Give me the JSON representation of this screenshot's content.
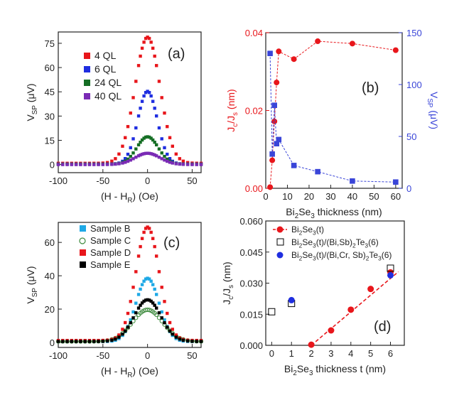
{
  "chart_data": [
    {
      "panel": "a",
      "type": "scatter",
      "panel_label": "(a)",
      "xlabel_main": "(H - H",
      "xlabel_sub": "R",
      "xlabel_end": ") (Oe)",
      "ylabel_main": "V",
      "ylabel_sub": "SP",
      "ylabel_end": " (μV)",
      "xlim": [
        -100,
        60
      ],
      "ylim": [
        -5,
        82
      ],
      "xticks": [
        -100,
        -50,
        0,
        50
      ],
      "yticks": [
        0,
        15,
        30,
        45,
        60,
        75
      ],
      "series": [
        {
          "name": "4 QL",
          "color": "#e8161b",
          "peak": 78,
          "width": 14,
          "offset": 0.8
        },
        {
          "name": "6 QL",
          "color": "#1f2ee0",
          "peak": 45,
          "width": 11,
          "offset": 0.3
        },
        {
          "name": "24 QL",
          "color": "#156e24",
          "peak": 17,
          "width": 12,
          "offset": 0.2
        },
        {
          "name": "40 QL",
          "color": "#7a2bb5",
          "peak": 7,
          "width": 14,
          "offset": 0.0
        }
      ],
      "x_samples": [
        -100,
        -95,
        -90,
        -85,
        -80,
        -75,
        -70,
        -65,
        -60,
        -55,
        -50,
        -45,
        -40,
        -36,
        -32,
        -28,
        -25,
        -22,
        -19,
        -16,
        -13,
        -10,
        -8,
        -6,
        -4,
        -2,
        0,
        2,
        4,
        6,
        8,
        10,
        13,
        16,
        19,
        22,
        25,
        28,
        32,
        36,
        40,
        45,
        50,
        55,
        60
      ]
    },
    {
      "panel": "b",
      "type": "line",
      "panel_label": "(b)",
      "xlabel_parts": [
        "Bi",
        "2",
        "Se",
        "3",
        " thickness (nm)"
      ],
      "ylabel_left_main": "J",
      "ylabel_left_sub1": "c",
      "ylabel_left_mid": "/J",
      "ylabel_left_sub2": "s",
      "ylabel_left_end": " (nm)",
      "ylabel_right_main": "V",
      "ylabel_right_sub": "SP",
      "ylabel_right_end": " (μV)",
      "xlim": [
        0,
        63
      ],
      "ylim_left": [
        0,
        0.04
      ],
      "ylim_right": [
        0,
        150
      ],
      "xticks": [
        0,
        10,
        20,
        30,
        40,
        50,
        60
      ],
      "yticks_left": [
        "0.00",
        "0.02",
        "0.04"
      ],
      "yticks_left_values": [
        0,
        0.02,
        0.04
      ],
      "yticks_right": [
        0,
        50,
        100,
        150
      ],
      "left_color": "#e8161b",
      "right_color": "#3a45d8",
      "series": [
        {
          "name": "Jc/Js",
          "axis": "left",
          "color": "#e8161b",
          "x": [
            2,
            3,
            4,
            5,
            6,
            13,
            24,
            40,
            60
          ],
          "y": [
            0.0003,
            0.0072,
            0.0172,
            0.0272,
            0.0352,
            0.0332,
            0.0378,
            0.0372,
            0.0355
          ]
        },
        {
          "name": "VSP",
          "axis": "right",
          "color": "#3a45d8",
          "x": [
            2,
            3,
            4,
            5,
            6,
            13,
            24,
            40,
            60
          ],
          "y": [
            130,
            33,
            80,
            43,
            47,
            22,
            16,
            7,
            6
          ]
        }
      ]
    },
    {
      "panel": "c",
      "type": "scatter",
      "panel_label": "(c)",
      "xlabel_main": "(H - H",
      "xlabel_sub": "R",
      "xlabel_end": ") (Oe)",
      "ylabel_main": "V",
      "ylabel_sub": "SP",
      "ylabel_end": " (μV)",
      "xlim": [
        -100,
        60
      ],
      "ylim": [
        -3,
        72
      ],
      "xticks": [
        -100,
        -50,
        0,
        50
      ],
      "yticks": [
        0,
        20,
        40,
        60
      ],
      "series": [
        {
          "name": "Sample B",
          "color": "#1fa9e6",
          "marker": "square",
          "peak": 38,
          "width": 13,
          "offset": 0.5
        },
        {
          "name": "Sample C",
          "color": "#3c8a3c",
          "marker": "open-circle",
          "peak": 19,
          "width": 17,
          "offset": 0.6
        },
        {
          "name": "Sample D",
          "color": "#e8161b",
          "marker": "square",
          "peak": 68,
          "width": 13,
          "offset": 1.2
        },
        {
          "name": "Sample E",
          "color": "#000000",
          "marker": "square",
          "peak": 25,
          "width": 15,
          "offset": 0.6
        }
      ],
      "x_samples": [
        -100,
        -95,
        -90,
        -85,
        -80,
        -75,
        -70,
        -65,
        -60,
        -55,
        -50,
        -45,
        -40,
        -36,
        -32,
        -28,
        -25,
        -22,
        -19,
        -16,
        -13,
        -10,
        -8,
        -6,
        -4,
        -2,
        0,
        2,
        4,
        6,
        8,
        10,
        13,
        16,
        19,
        22,
        25,
        28,
        32,
        36,
        40,
        45,
        50,
        55,
        60
      ]
    },
    {
      "panel": "d",
      "type": "scatter",
      "panel_label": "(d)",
      "xlabel_parts": [
        "Bi",
        "2",
        "Se",
        "3",
        " thickness t (nm)"
      ],
      "ylabel_main": "J",
      "ylabel_sub1": "c",
      "ylabel_mid": "/J",
      "ylabel_sub2": "s",
      "ylabel_end": " (nm)",
      "xlim": [
        -0.3,
        6.7
      ],
      "ylim": [
        0,
        0.06
      ],
      "xticks": [
        0,
        1,
        2,
        3,
        4,
        5,
        6
      ],
      "yticks": [
        "0.000",
        "0.015",
        "0.030",
        "0.045",
        "0.060"
      ],
      "yticks_values": [
        0,
        0.015,
        0.03,
        0.045,
        0.06
      ],
      "series": [
        {
          "name_parts": [
            "Bi",
            "2",
            "Se",
            "3",
            "(t)"
          ],
          "color": "#e8161b",
          "marker": "filled-circle-dashed-line",
          "x": [
            2,
            3,
            4,
            5,
            6
          ],
          "y": [
            0.0003,
            0.0072,
            0.0172,
            0.0272,
            0.0352
          ],
          "fit_x": [
            2,
            6.4
          ],
          "fit_y": [
            0.0,
            0.0355
          ]
        },
        {
          "name_parts": [
            "Bi",
            "2",
            "Se",
            "3",
            "(t)/(Bi,Sb)",
            "2",
            "Te",
            "3",
            "(6)"
          ],
          "color": "#000000",
          "marker": "open-square",
          "x": [
            0,
            1,
            6
          ],
          "y": [
            0.0162,
            0.0202,
            0.0372
          ]
        },
        {
          "name_parts": [
            "Bi",
            "2",
            "Se",
            "3",
            "(t)/(Bi,Cr, Sb)",
            "2",
            "Te",
            "3",
            "(6)"
          ],
          "color": "#1f2ee0",
          "marker": "filled-circle",
          "x": [
            1,
            6
          ],
          "y": [
            0.0218,
            0.0338
          ]
        }
      ]
    }
  ]
}
